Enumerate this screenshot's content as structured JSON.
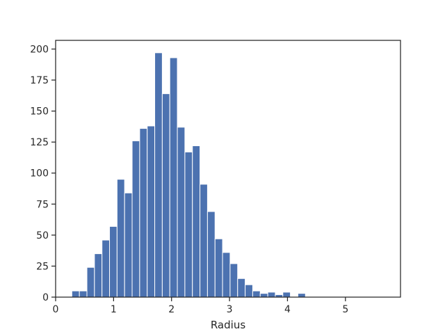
{
  "chart_data": {
    "type": "bar",
    "subtype": "histogram",
    "xlabel": "Radius",
    "ylabel": "",
    "xlim": [
      0,
      5.95
    ],
    "ylim": [
      0,
      207
    ],
    "x_ticks": [
      0,
      1,
      2,
      3,
      4,
      5
    ],
    "y_ticks": [
      0,
      25,
      50,
      75,
      100,
      125,
      150,
      175,
      200
    ],
    "bin_width": 0.13,
    "bins_start": [
      0.28,
      0.41,
      0.54,
      0.67,
      0.8,
      0.93,
      1.06,
      1.19,
      1.32,
      1.45,
      1.58,
      1.71,
      1.84,
      1.97,
      2.1,
      2.23,
      2.36,
      2.49,
      2.62,
      2.75,
      2.88,
      3.01,
      3.14,
      3.27,
      3.4,
      3.53,
      3.66,
      3.79,
      3.92,
      4.05,
      4.18,
      4.31,
      4.44,
      4.57,
      4.7,
      4.83,
      4.96,
      5.09,
      5.22,
      5.35,
      5.48,
      5.61
    ],
    "values": [
      5,
      5,
      24,
      35,
      46,
      57,
      95,
      84,
      126,
      136,
      138,
      197,
      164,
      193,
      137,
      117,
      122,
      91,
      69,
      47,
      36,
      27,
      15,
      10,
      5,
      3,
      4,
      2,
      4,
      0,
      3,
      0,
      0,
      0,
      0,
      0,
      0,
      0,
      0,
      0,
      0,
      0
    ],
    "bar_color": "#4c72b0",
    "grid": false,
    "legend": "none"
  }
}
